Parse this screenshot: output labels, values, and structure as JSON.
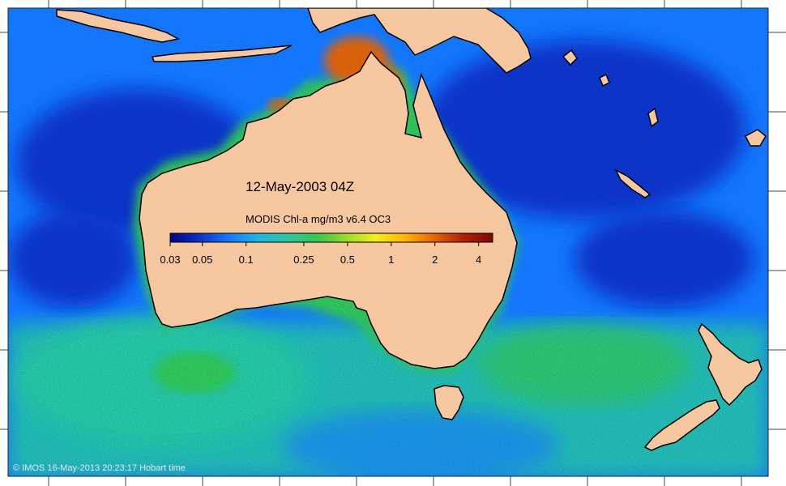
{
  "map": {
    "date_label": "12-May-2003 04Z",
    "colorbar": {
      "title": "MODIS Chl-a mg/m3 v6.4 OC3",
      "scale": "log",
      "range": [
        0.03,
        5
      ],
      "ticks": [
        "0.03",
        "0.05",
        "0.1",
        "0.25",
        "0.5",
        "1",
        "2",
        "4"
      ],
      "colors": [
        "#00008b",
        "#0a32c8",
        "#1478ff",
        "#1eb4e6",
        "#28c8a0",
        "#32c850",
        "#96dc28",
        "#f0f01e",
        "#ffb400",
        "#e66400",
        "#b41e0a",
        "#7d0a00"
      ]
    },
    "credit": "© IMOS 16-May-2013 20:23:17 Hobart time",
    "colors": {
      "land": "#f7c8a0",
      "coastline": "#000000",
      "deep_ocean": "#0a32c8",
      "open_ocean": "#1478ff",
      "southern_ocean": "#28c8a0",
      "shelf": "#32c850",
      "coastal_high": "#e66400",
      "frame": "#ffffff",
      "tick": "#444444"
    },
    "regions": [
      "Australia",
      "New Guinea",
      "Tasmania",
      "New Zealand",
      "New Caledonia",
      "Indonesia"
    ]
  }
}
